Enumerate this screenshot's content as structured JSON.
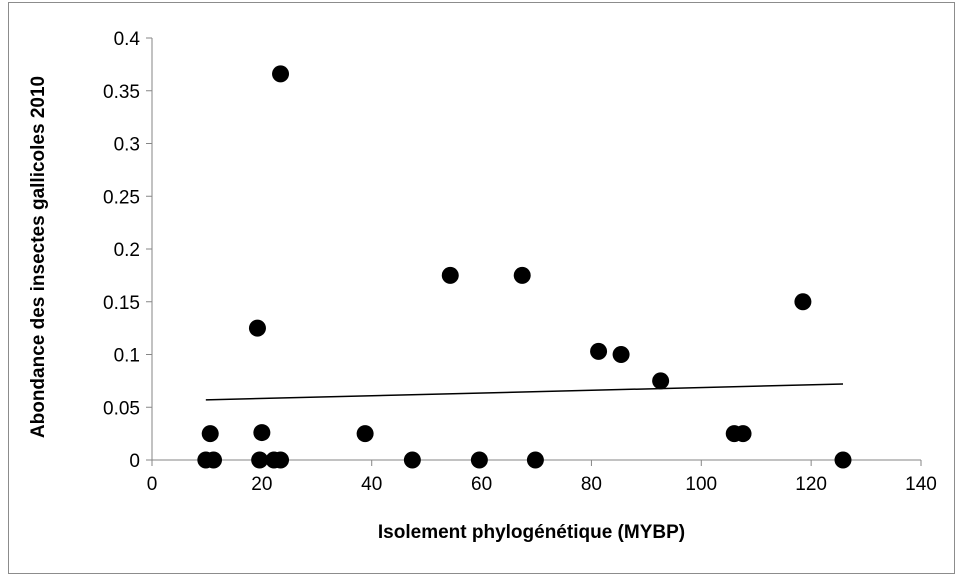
{
  "chart_data": {
    "type": "scatter",
    "title": "",
    "xlabel": "Isolement phylogénétique (MYBP)",
    "ylabel": "Abondance des insectes gallicoles 2010",
    "xlim": [
      0,
      140
    ],
    "ylim": [
      0,
      0.4
    ],
    "x_ticks": [
      "0",
      "20",
      "40",
      "60",
      "80",
      "100",
      "120",
      "140"
    ],
    "y_ticks": [
      "0",
      "0.05",
      "0.1",
      "0.15",
      "0.2",
      "0.25",
      "0.3",
      "0.35",
      "0.4"
    ],
    "x_tick_values": [
      0,
      20,
      40,
      60,
      80,
      100,
      120,
      140
    ],
    "y_tick_values": [
      0,
      0.05,
      0.1,
      0.15,
      0.2,
      0.25,
      0.3,
      0.35,
      0.4
    ],
    "grid": false,
    "legend": "none",
    "marker_color": "#000000",
    "points": [
      {
        "x": 9.8,
        "y": 0
      },
      {
        "x": 11.2,
        "y": 0
      },
      {
        "x": 10.6,
        "y": 0.025
      },
      {
        "x": 19.2,
        "y": 0.125
      },
      {
        "x": 19.6,
        "y": 0
      },
      {
        "x": 20.0,
        "y": 0.026
      },
      {
        "x": 22.2,
        "y": 0
      },
      {
        "x": 23.4,
        "y": 0
      },
      {
        "x": 23.4,
        "y": 0.366
      },
      {
        "x": 38.8,
        "y": 0.025
      },
      {
        "x": 47.4,
        "y": 0
      },
      {
        "x": 54.3,
        "y": 0.175
      },
      {
        "x": 59.6,
        "y": 0
      },
      {
        "x": 67.4,
        "y": 0.175
      },
      {
        "x": 69.8,
        "y": 0
      },
      {
        "x": 81.3,
        "y": 0.103
      },
      {
        "x": 85.4,
        "y": 0.1
      },
      {
        "x": 92.6,
        "y": 0.075
      },
      {
        "x": 106.0,
        "y": 0.025
      },
      {
        "x": 107.6,
        "y": 0.025
      },
      {
        "x": 118.5,
        "y": 0.15
      },
      {
        "x": 125.8,
        "y": 0
      }
    ],
    "trendline": {
      "x": [
        9.8,
        125.8
      ],
      "y": [
        0.057,
        0.072
      ]
    }
  }
}
